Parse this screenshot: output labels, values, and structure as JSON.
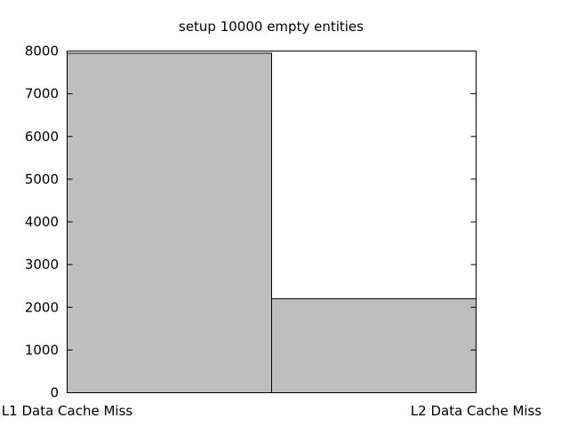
{
  "chart_data": {
    "type": "bar",
    "title": "setup 10000 empty entities",
    "xlabel": "",
    "ylabel": "",
    "categories": [
      "L1 Data Cache Miss",
      "L2 Data Cache Miss"
    ],
    "values": [
      7950,
      2200
    ],
    "ylim": [
      0,
      8000
    ],
    "yticks": [
      0,
      1000,
      2000,
      3000,
      4000,
      5000,
      6000,
      7000,
      8000
    ],
    "grid": false,
    "legend": "none",
    "bar_color": "#bebebe",
    "edge_color": "#000000"
  }
}
